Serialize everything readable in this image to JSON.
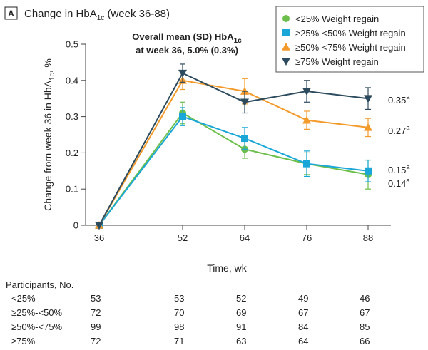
{
  "panel": {
    "letter": "A",
    "title_main": "Change in HbA",
    "title_sub": "1c",
    "title_rest": " (week 36-88)"
  },
  "annotation": {
    "line1_main": "Overall mean (SD) HbA",
    "line1_sub": "1c",
    "line2": "at week 36, 5.0% (0.3%)"
  },
  "chart_data": {
    "type": "line",
    "xlabel": "Time, wk",
    "ylabel_main": "Change from week 36 in HbA",
    "ylabel_sub": "1c",
    "ylabel_rest": ", %",
    "x": [
      36,
      52,
      64,
      76,
      88
    ],
    "xlim": [
      36,
      88
    ],
    "ylim": [
      0,
      0.5
    ],
    "yticks": [
      "0",
      "0.1",
      "0.2",
      "0.3",
      "0.4",
      "0.5"
    ],
    "xticks": [
      "36",
      "52",
      "64",
      "76",
      "88"
    ],
    "series": [
      {
        "name": "<25% Weight regain",
        "color": "#6cbf4a",
        "marker": "circle",
        "values": [
          0,
          0.31,
          0.21,
          0.17,
          0.14
        ],
        "error": [
          0,
          0.03,
          0.025,
          0.03,
          0.04
        ],
        "end_label": "0.14",
        "end_sup": "a"
      },
      {
        "name": "≥25%-<50% Weight regain",
        "color": "#1aa7d8",
        "marker": "square",
        "values": [
          0,
          0.3,
          0.24,
          0.17,
          0.15
        ],
        "error": [
          0,
          0.025,
          0.03,
          0.035,
          0.03
        ],
        "end_label": "0.15",
        "end_sup": "a"
      },
      {
        "name": "≥50%-<75% Weight regain",
        "color": "#f49a2a",
        "marker": "triangle-up",
        "values": [
          0,
          0.4,
          0.37,
          0.29,
          0.27
        ],
        "error": [
          0,
          0.025,
          0.035,
          0.025,
          0.025
        ],
        "end_label": "0.27",
        "end_sup": "a"
      },
      {
        "name": "≥75% Weight regain",
        "color": "#2c4b5e",
        "marker": "triangle-down",
        "values": [
          0,
          0.42,
          0.34,
          0.37,
          0.35
        ],
        "error": [
          0,
          0.025,
          0.03,
          0.03,
          0.03
        ],
        "end_label": "0.35",
        "end_sup": "a"
      }
    ]
  },
  "participants": {
    "title": "Participants, No.",
    "rows": [
      {
        "label": "<25%",
        "values": [
          "53",
          "53",
          "52",
          "49",
          "46"
        ]
      },
      {
        "label": "≥25%-<50%",
        "values": [
          "72",
          "70",
          "69",
          "67",
          "67"
        ]
      },
      {
        "label": "≥50%-<75%",
        "values": [
          "99",
          "98",
          "91",
          "84",
          "85"
        ]
      },
      {
        "label": "≥75%",
        "values": [
          "72",
          "71",
          "63",
          "64",
          "66"
        ]
      }
    ]
  }
}
